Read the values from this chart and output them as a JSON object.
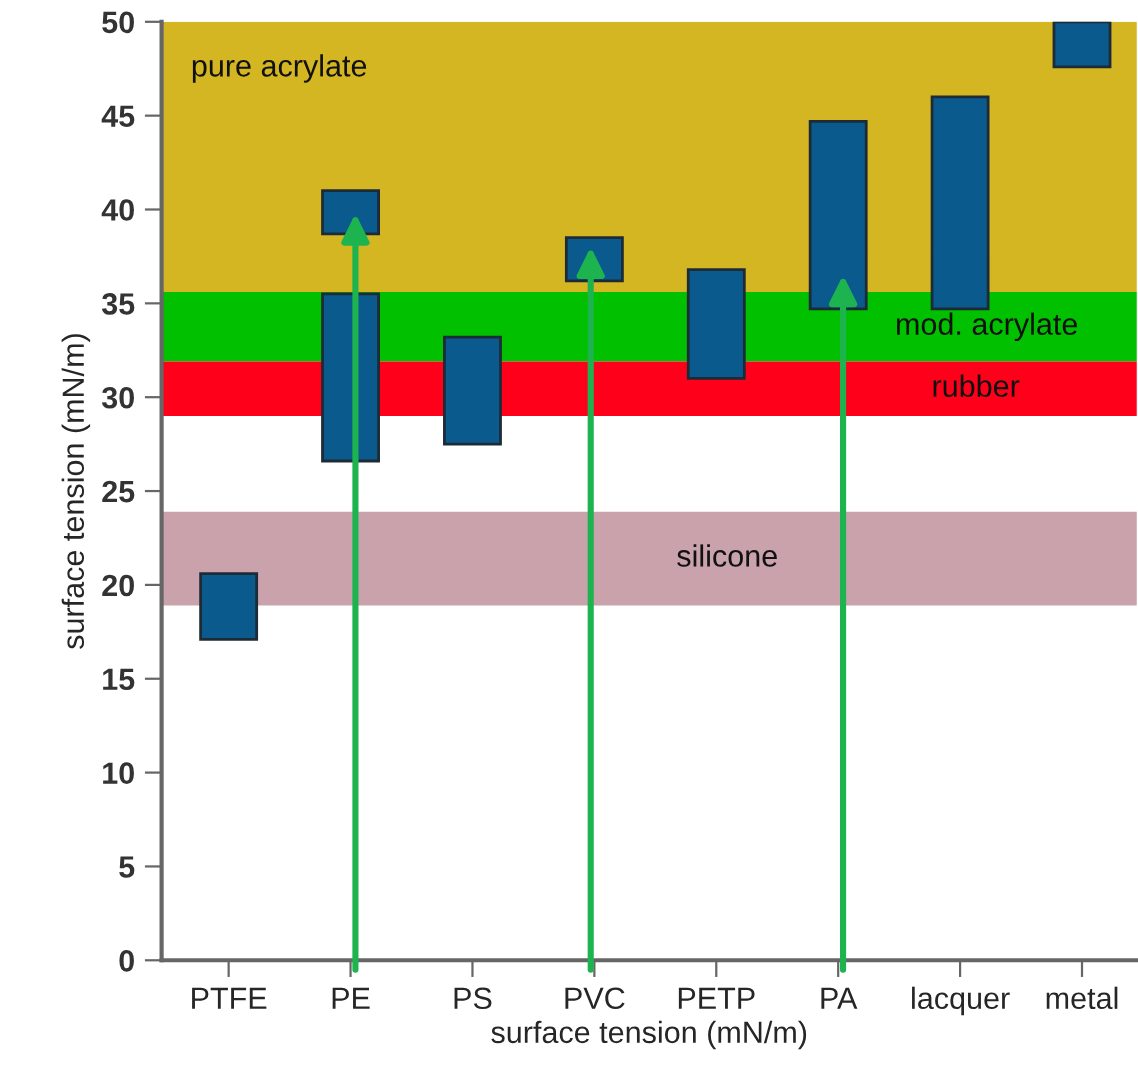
{
  "chart_data": {
    "type": "bar",
    "xlabel": "surface tension (mN/m)",
    "ylabel": "surface tension (mN/m)",
    "categories": [
      "PTFE",
      "PE",
      "PS",
      "PVC",
      "PETP",
      "PA",
      "lacquer",
      "metal"
    ],
    "series": [
      {
        "color": "#0a5a8e",
        "base": [
          17.1,
          26.6,
          27.5,
          36.2,
          31.0,
          34.7,
          34.7,
          47.6
        ],
        "values": [
          3.5,
          8.9,
          5.7,
          2.3,
          5.8,
          10.0,
          11.3,
          2.4
        ]
      },
      {
        "color": "#0a5a8e",
        "base": [
          null,
          38.7,
          null,
          null,
          null,
          null,
          null,
          null
        ],
        "values": [
          null,
          2.3,
          null,
          null,
          null,
          null,
          null,
          null
        ]
      }
    ],
    "ylim": [
      0,
      50
    ],
    "yticks": [
      0,
      5,
      10,
      15,
      20,
      25,
      30,
      35,
      40,
      45,
      50
    ],
    "bands": [
      {
        "axis": "y",
        "from": 35.6,
        "to": 50,
        "label": "pure acrylate",
        "color": "#d4b623"
      },
      {
        "axis": "y",
        "from": 31.9,
        "to": 35.6,
        "label": "mod. acrylate",
        "color": "#00c000"
      },
      {
        "axis": "y",
        "from": 29.0,
        "to": 31.9,
        "label": "rubber",
        "color": "#ff001a"
      },
      {
        "axis": "y",
        "from": 18.9,
        "to": 23.9,
        "label": "silicone",
        "color": "#c9a2ac"
      }
    ],
    "grid": false,
    "legend": false
  }
}
